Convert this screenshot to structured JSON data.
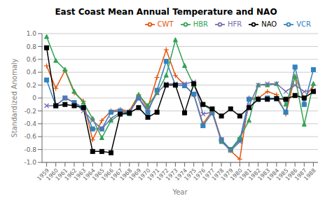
{
  "chart_data": {
    "type": "line",
    "title": "East Coast Mean Annual Temperature and NAO",
    "xlabel": "Year",
    "ylabel": "Standardized Anomaly",
    "x": [
      1959,
      1960,
      1961,
      1962,
      1963,
      1964,
      1965,
      1966,
      1967,
      1968,
      1969,
      1970,
      1971,
      1972,
      1973,
      1974,
      1975,
      1976,
      1977,
      1978,
      1979,
      1980,
      1981,
      1982,
      1983,
      1984,
      1985,
      1986,
      1987,
      1988
    ],
    "xlim": [
      1958.5,
      1988.5
    ],
    "xticks": [
      1959,
      1960,
      1961,
      1962,
      1963,
      1964,
      1965,
      1966,
      1967,
      1968,
      1969,
      1970,
      1971,
      1972,
      1973,
      1974,
      1975,
      1976,
      1977,
      1978,
      1979,
      1980,
      1981,
      1982,
      1983,
      1984,
      1985,
      1986,
      1987,
      1988
    ],
    "ylim": [
      -1.0,
      1.0
    ],
    "yticks": [
      {
        "value": -1.0,
        "label": "-1.0"
      },
      -0.8,
      -0.6,
      -0.4,
      -0.2,
      0,
      0.2,
      0.4,
      0.6,
      0.8,
      {
        "value": 1.0,
        "label": "1.0"
      }
    ],
    "grid": true,
    "legend": "upper right",
    "series": [
      {
        "name": "CWT",
        "color": "#e6550d",
        "marker": "plus",
        "values": [
          0.5,
          0.15,
          0.43,
          0.08,
          -0.05,
          -0.65,
          -0.35,
          -0.2,
          -0.18,
          -0.2,
          0.05,
          -0.15,
          0.32,
          0.75,
          0.35,
          0.2,
          0.05,
          -0.4,
          -0.2,
          -0.65,
          -0.82,
          -0.95,
          0.0,
          0.0,
          0.1,
          0.05,
          -0.25,
          0.34,
          -0.01,
          0.2
        ]
      },
      {
        "name": "VCR",
        "color": "#3182bd",
        "marker": "square",
        "values": [
          0.28,
          -0.12,
          0.0,
          -0.07,
          -0.15,
          -0.48,
          -0.48,
          -0.22,
          -0.2,
          -0.22,
          0.0,
          -0.22,
          0.12,
          0.57,
          0.2,
          0.19,
          0.06,
          -0.43,
          -0.23,
          -0.65,
          -0.8,
          -0.65,
          -0.02,
          -0.02,
          0.0,
          -0.01,
          -0.22,
          0.48,
          -0.1,
          0.44
        ]
      },
      {
        "name": "HBR",
        "color": "#31a354",
        "marker": "triangle",
        "values": [
          0.95,
          0.58,
          0.44,
          0.1,
          -0.07,
          -0.32,
          -0.62,
          -0.35,
          -0.25,
          -0.25,
          0.05,
          -0.12,
          0.08,
          0.35,
          0.9,
          0.5,
          0.2,
          -0.1,
          -0.2,
          -0.68,
          -0.8,
          -0.62,
          -0.35,
          0.2,
          0.2,
          0.22,
          -0.1,
          0.33,
          -0.41,
          0.22
        ]
      },
      {
        "name": "HFR",
        "color": "#756bb1",
        "marker": "x",
        "values": [
          -0.12,
          -0.12,
          0.0,
          -0.07,
          -0.2,
          -0.35,
          -0.48,
          -0.32,
          -0.22,
          -0.22,
          0.0,
          -0.18,
          0.08,
          0.22,
          0.22,
          0.22,
          0.25,
          -0.25,
          -0.22,
          -0.67,
          -0.82,
          -0.68,
          -0.12,
          0.2,
          0.22,
          0.22,
          0.1,
          0.2,
          0.1,
          0.12
        ]
      },
      {
        "name": "NAO",
        "color": "#000000",
        "marker": "square",
        "values": [
          0.78,
          -0.12,
          -0.1,
          -0.12,
          -0.15,
          -0.83,
          -0.83,
          -0.85,
          -0.25,
          -0.23,
          -0.15,
          -0.3,
          -0.22,
          0.2,
          0.2,
          -0.23,
          0.22,
          -0.1,
          -0.17,
          -0.28,
          -0.17,
          -0.28,
          -0.15,
          -0.02,
          -0.02,
          -0.01,
          -0.02,
          0.04,
          0.0,
          0.1
        ]
      }
    ]
  }
}
